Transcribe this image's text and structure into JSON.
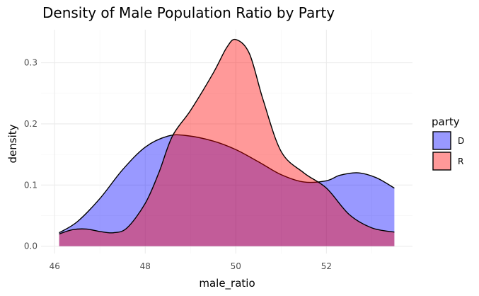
{
  "chart_data": {
    "type": "area",
    "title": "Density of Male Population Ratio by Party",
    "xlabel": "male_ratio",
    "ylabel": "density",
    "xlim": [
      45.7,
      53.9
    ],
    "ylim": [
      -0.012,
      0.354
    ],
    "x_ticks": [
      46,
      48,
      50,
      52
    ],
    "x_tick_labels": [
      "46",
      "48",
      "50",
      "52"
    ],
    "y_ticks": [
      0.0,
      0.1,
      0.2,
      0.3
    ],
    "y_tick_labels": [
      "0.0",
      "0.1",
      "0.2",
      "0.3"
    ],
    "grid": true,
    "legend": {
      "title": "party",
      "position": "right"
    },
    "series": [
      {
        "name": "D",
        "color": "#0000ff",
        "fill_opacity": 0.4,
        "x": [
          46.1,
          46.5,
          47.0,
          47.5,
          48.0,
          48.5,
          48.9,
          49.5,
          50.0,
          50.5,
          51.0,
          51.5,
          52.0,
          52.3,
          52.7,
          53.1,
          53.5
        ],
        "values": [
          0.022,
          0.04,
          0.078,
          0.125,
          0.162,
          0.18,
          0.181,
          0.172,
          0.158,
          0.138,
          0.117,
          0.105,
          0.107,
          0.116,
          0.12,
          0.112,
          0.095
        ]
      },
      {
        "name": "R",
        "color": "#ff0000",
        "fill_opacity": 0.4,
        "x": [
          46.1,
          46.4,
          46.7,
          47.0,
          47.3,
          47.6,
          48.0,
          48.3,
          48.6,
          49.0,
          49.5,
          49.8,
          50.0,
          50.3,
          50.6,
          51.0,
          51.5,
          52.0,
          52.5,
          53.0,
          53.5
        ],
        "values": [
          0.02,
          0.027,
          0.028,
          0.024,
          0.022,
          0.03,
          0.07,
          0.12,
          0.18,
          0.222,
          0.283,
          0.325,
          0.338,
          0.315,
          0.24,
          0.155,
          0.12,
          0.095,
          0.052,
          0.03,
          0.023
        ]
      }
    ]
  }
}
